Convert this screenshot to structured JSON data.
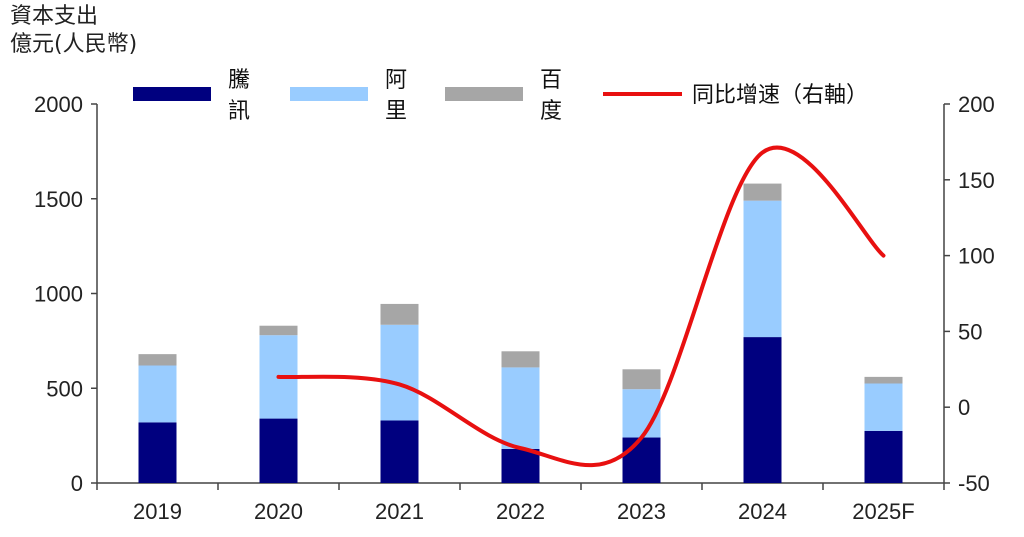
{
  "chart_data": {
    "type": "bar",
    "stacked": true,
    "ylabel_lines": [
      "資本支出",
      "億元(人民幣)"
    ],
    "categories": [
      "2019",
      "2020",
      "2021",
      "2022",
      "2023",
      "2024",
      "2025F"
    ],
    "ylim": [
      0,
      2000
    ],
    "y_ticks": [
      0,
      500,
      1000,
      1500,
      2000
    ],
    "y2lim": [
      -50,
      200
    ],
    "y2_ticks": [
      -50,
      0,
      50,
      100,
      150,
      200
    ],
    "series": [
      {
        "name": "騰訊",
        "type": "bar",
        "color": "#00007f",
        "values": [
          320,
          340,
          330,
          180,
          240,
          770,
          275
        ]
      },
      {
        "name": "阿里",
        "type": "bar",
        "color": "#99ccff",
        "values": [
          300,
          440,
          505,
          430,
          255,
          720,
          250
        ]
      },
      {
        "name": "百度",
        "type": "bar",
        "color": "#a6a6a6",
        "values": [
          60,
          50,
          110,
          85,
          105,
          90,
          35
        ]
      },
      {
        "name": "同比增速（右軸）",
        "type": "line",
        "axis": "right",
        "color": "#e81010",
        "x": [
          "2020",
          "2021",
          "2022",
          "2023",
          "2024",
          "2025F"
        ],
        "values": [
          20,
          15,
          -27,
          -20,
          168,
          100
        ]
      }
    ],
    "legend": {
      "placement": "top",
      "labels": [
        [
          "騰",
          "訊"
        ],
        [
          "阿",
          "里"
        ],
        [
          "百",
          "度"
        ],
        [
          "同比增速（右軸）"
        ]
      ]
    },
    "grid": false
  }
}
